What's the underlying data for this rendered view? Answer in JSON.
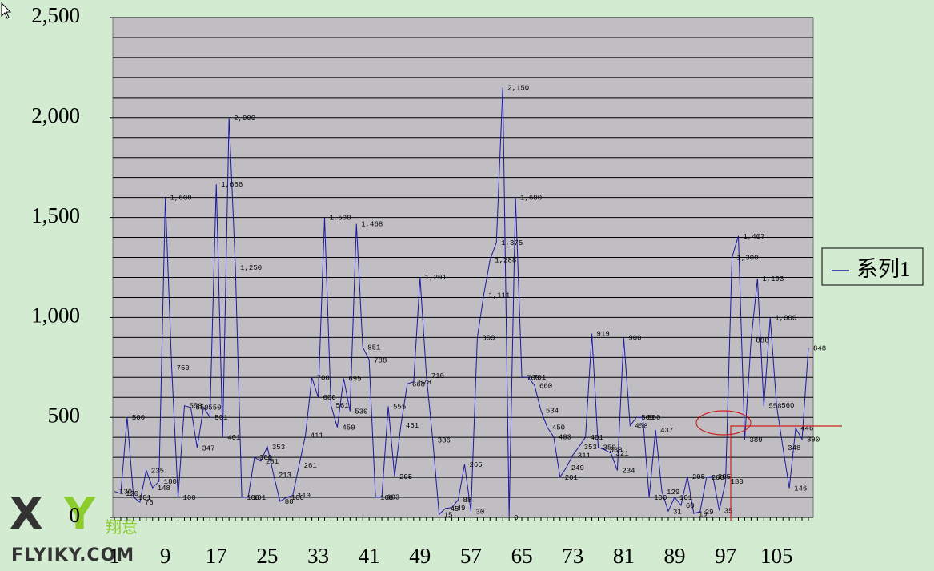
{
  "chart_data": {
    "type": "line",
    "categories": [
      1,
      null,
      null,
      null,
      null,
      null,
      null,
      null,
      9,
      null,
      null,
      null,
      null,
      null,
      null,
      null,
      17,
      null,
      null,
      null,
      null,
      null,
      null,
      null,
      25,
      null,
      null,
      null,
      null,
      null,
      null,
      null,
      33,
      null,
      null,
      null,
      null,
      null,
      null,
      null,
      41,
      null,
      null,
      null,
      null,
      null,
      null,
      null,
      49,
      null,
      null,
      null,
      null,
      null,
      null,
      null,
      57,
      null,
      null,
      null,
      null,
      null,
      null,
      null,
      65,
      null,
      null,
      null,
      null,
      null,
      null,
      null,
      73,
      null,
      null,
      null,
      null,
      null,
      null,
      null,
      81,
      null,
      null,
      null,
      null,
      null,
      null,
      null,
      89,
      null,
      null,
      null,
      null,
      null,
      null,
      null,
      97,
      null,
      null,
      null,
      null,
      null,
      null,
      null,
      105,
      null,
      null,
      null,
      null,
      null
    ],
    "series": [
      {
        "name": "系列1",
        "color": "#1a1aa0",
        "values": [
          130,
          120,
          500,
          101,
          76,
          235,
          148,
          180,
          1600,
          750,
          100,
          558,
          550,
          347,
          550,
          501,
          1666,
          401,
          2000,
          1250,
          100,
          101,
          300,
          281,
          353,
          213,
          80,
          100,
          110,
          261,
          411,
          700,
          600,
          1500,
          561,
          450,
          695,
          530,
          1468,
          851,
          788,
          100,
          103,
          555,
          205,
          461,
          668,
          678,
          1201,
          710,
          386,
          15,
          45,
          49,
          88,
          265,
          30,
          899,
          1111,
          1288,
          1375,
          2150,
          0,
          1600,
          700,
          701,
          660,
          534,
          450,
          403,
          201,
          249,
          311,
          353,
          401,
          919,
          350,
          338,
          321,
          234,
          900,
          458,
          500,
          500,
          100,
          437,
          129,
          31,
          101,
          60,
          205,
          19,
          29,
          200,
          205,
          35,
          180,
          1300,
          1407,
          389,
          888,
          1193,
          558,
          1000,
          560,
          348,
          146,
          446,
          390,
          848
        ],
        "value_labels": [
          "130",
          "120",
          "500",
          "101",
          "76",
          "235",
          "148",
          "180",
          "1,600",
          "750",
          "100",
          "558",
          "550",
          "347",
          "550",
          "501",
          "1,666",
          "401",
          "2,000",
          "1,250",
          "100",
          "101",
          "300",
          "281",
          "353",
          "213",
          "80",
          "100",
          "110",
          "261",
          "411",
          "700",
          "600",
          "1,500",
          "561",
          "450",
          "695",
          "530",
          "1,468",
          "851",
          "788",
          "100",
          "103",
          "555",
          "205",
          "461",
          "668",
          "678",
          "1,201",
          "710",
          "386",
          "15",
          "45",
          "49",
          "88",
          "265",
          "30",
          "899",
          "1,111",
          "1,288",
          "1,375",
          "2,150",
          "0",
          "1,600",
          "700",
          "701",
          "660",
          "534",
          "450",
          "403",
          "201",
          "249",
          "311",
          "353",
          "401",
          "919",
          "350",
          "338",
          "321",
          "234",
          "900",
          "458",
          "500",
          "500",
          "100",
          "437",
          "129",
          "31",
          "101",
          "60",
          "205",
          "19",
          "29",
          "200",
          "205",
          "35",
          "180",
          "1,300",
          "1,407",
          "389",
          "888",
          "1,193",
          "558",
          "1,000",
          "560",
          "348",
          "146",
          "446",
          "390",
          "848"
        ]
      }
    ],
    "ylim": [
      0,
      2500
    ],
    "yticks": [
      0,
      500,
      {
        "value": 1000,
        "label": "1,000"
      },
      {
        "value": 1500,
        "label": "1,500"
      },
      {
        "value": 2000,
        "label": "2,000"
      },
      {
        "value": 2500,
        "label": "2,500"
      }
    ],
    "ygrid": [
      0,
      100,
      200,
      300,
      400,
      500,
      600,
      700,
      800,
      900,
      1000,
      1100,
      1200,
      1300,
      1400,
      1500,
      1600,
      1700,
      1800,
      1900,
      2000,
      2100,
      2200,
      2300,
      2400,
      2500
    ],
    "grid": true,
    "legend": "right"
  },
  "watermark": {
    "brand": "翔意",
    "site": "FLYIKY.COM"
  }
}
